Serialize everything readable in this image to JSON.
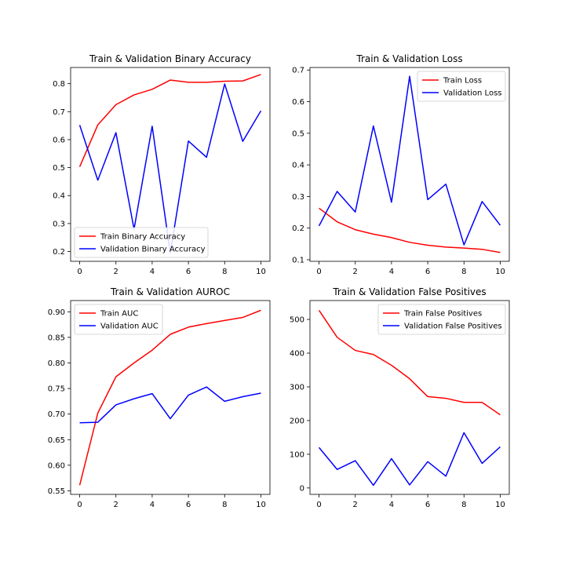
{
  "chart_data": [
    {
      "type": "line",
      "title": "Train & Validation Binary Accuracy",
      "xlabel": "",
      "ylabel": "",
      "xlim": [
        -0.5,
        10.5
      ],
      "ylim": [
        0.165,
        0.858
      ],
      "xticks": [
        0,
        2,
        4,
        6,
        8,
        10
      ],
      "yticks": [
        0.2,
        0.3,
        0.4,
        0.5,
        0.6,
        0.7,
        0.8
      ],
      "grid": false,
      "legend_position": "lower-left",
      "x": [
        0,
        1,
        2,
        3,
        4,
        5,
        6,
        7,
        8,
        9,
        10
      ],
      "series": [
        {
          "name": "Train Binary Accuracy",
          "color": "#ff0000",
          "values": [
            0.503,
            0.653,
            0.725,
            0.76,
            0.78,
            0.813,
            0.805,
            0.805,
            0.809,
            0.81,
            0.833
          ]
        },
        {
          "name": "Validation Binary Accuracy",
          "color": "#0000ff",
          "values": [
            0.652,
            0.455,
            0.625,
            0.28,
            0.648,
            0.195,
            0.595,
            0.537,
            0.799,
            0.594,
            0.703
          ]
        }
      ]
    },
    {
      "type": "line",
      "title": "Train & Validation Loss",
      "xlabel": "",
      "ylabel": "",
      "xlim": [
        -0.5,
        10.5
      ],
      "ylim": [
        0.095,
        0.708
      ],
      "xticks": [
        0,
        2,
        4,
        6,
        8,
        10
      ],
      "yticks": [
        0.1,
        0.2,
        0.3,
        0.4,
        0.5,
        0.6,
        0.7
      ],
      "grid": false,
      "legend_position": "upper-right",
      "x": [
        0,
        1,
        2,
        3,
        4,
        5,
        6,
        7,
        8,
        9,
        10
      ],
      "series": [
        {
          "name": "Train Loss",
          "color": "#ff0000",
          "values": [
            0.263,
            0.22,
            0.195,
            0.181,
            0.17,
            0.155,
            0.146,
            0.14,
            0.137,
            0.133,
            0.123
          ]
        },
        {
          "name": "Validation Loss",
          "color": "#0000ff",
          "values": [
            0.207,
            0.316,
            0.251,
            0.523,
            0.282,
            0.68,
            0.29,
            0.339,
            0.147,
            0.284,
            0.209
          ]
        }
      ]
    },
    {
      "type": "line",
      "title": "Train & Validation AUROC",
      "xlabel": "",
      "ylabel": "",
      "xlim": [
        -0.5,
        10.5
      ],
      "ylim": [
        0.543,
        0.922
      ],
      "xticks": [
        0,
        2,
        4,
        6,
        8,
        10
      ],
      "yticks": [
        0.55,
        0.6,
        0.65,
        0.7,
        0.75,
        0.8,
        0.85,
        0.9
      ],
      "ytick_labels": [
        "0.55",
        "0.60",
        "0.65",
        "0.70",
        "0.75",
        "0.80",
        "0.85",
        "0.90"
      ],
      "grid": false,
      "legend_position": "upper-left",
      "x": [
        0,
        1,
        2,
        3,
        4,
        5,
        6,
        7,
        8,
        9,
        10
      ],
      "series": [
        {
          "name": "Train AUC",
          "color": "#ff0000",
          "values": [
            0.561,
            0.702,
            0.773,
            0.8,
            0.825,
            0.856,
            0.87,
            0.877,
            0.883,
            0.889,
            0.903
          ]
        },
        {
          "name": "Validation AUC",
          "color": "#0000ff",
          "values": [
            0.683,
            0.684,
            0.718,
            0.73,
            0.74,
            0.691,
            0.737,
            0.753,
            0.725,
            0.734,
            0.741
          ]
        }
      ]
    },
    {
      "type": "line",
      "title": "Train & Validation False Positives",
      "xlabel": "",
      "ylabel": "",
      "xlim": [
        -0.5,
        10.5
      ],
      "ylim": [
        -19,
        556
      ],
      "xticks": [
        0,
        2,
        4,
        6,
        8,
        10
      ],
      "yticks": [
        0,
        100,
        200,
        300,
        400,
        500
      ],
      "grid": false,
      "legend_position": "upper-right",
      "x": [
        0,
        1,
        2,
        3,
        4,
        5,
        6,
        7,
        8,
        9,
        10
      ],
      "series": [
        {
          "name": "Train False Positives",
          "color": "#ff0000",
          "values": [
            527,
            447,
            408,
            396,
            364,
            324,
            271,
            266,
            254,
            254,
            217
          ]
        },
        {
          "name": "Validation False Positives",
          "color": "#0000ff",
          "values": [
            120,
            55,
            81,
            8,
            87,
            9,
            78,
            35,
            164,
            73,
            122
          ]
        }
      ]
    }
  ]
}
